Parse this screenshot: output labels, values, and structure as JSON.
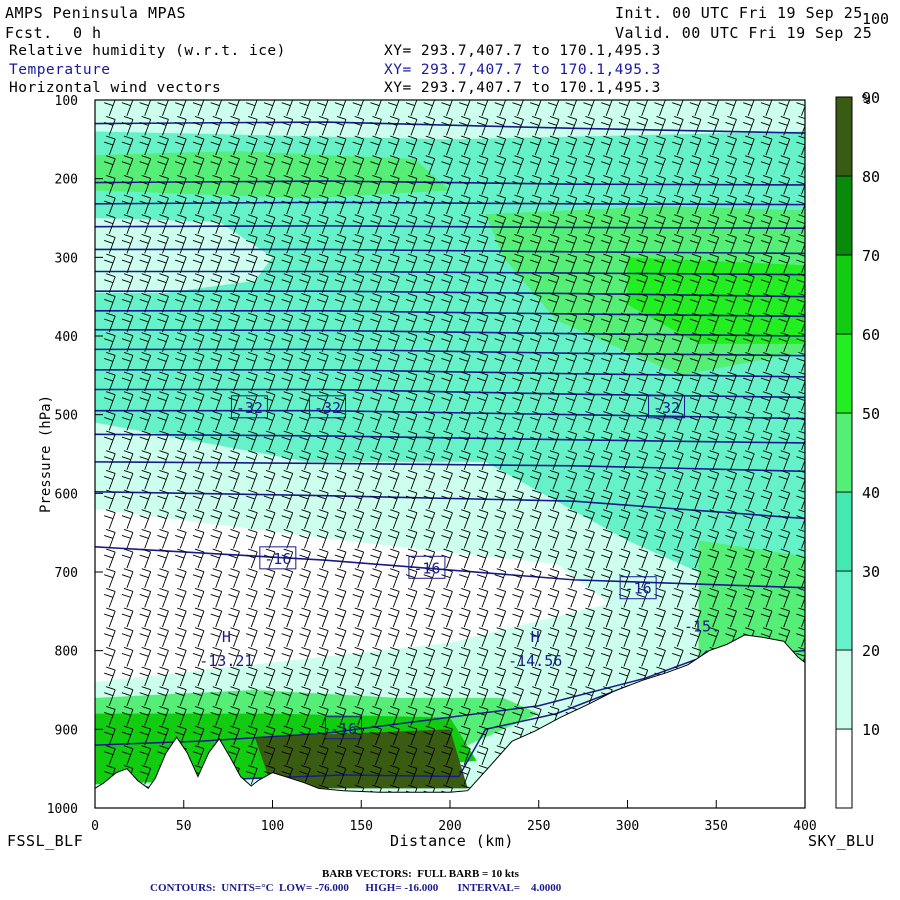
{
  "header": {
    "model": "AMPS Peninsula MPAS",
    "fcst_label": "Fcst.",
    "fcst_value": "0 h",
    "init": "Init. 00 UTC Fri 19 Sep 25",
    "valid": "Valid. 00 UTC Fri 19 Sep 25",
    "fields": [
      {
        "name": "Relative humidity (w.r.t. ice)",
        "xy": "XY= 293.7,407.7 to 170.1,495.3"
      },
      {
        "name": "Temperature",
        "xy": "XY= 293.7,407.7 to 170.1,495.3"
      },
      {
        "name": "Horizontal wind vectors",
        "xy": "XY= 293.7,407.7 to 170.1,495.3"
      }
    ]
  },
  "footer": {
    "left_station": "FSSL_BLF",
    "right_station": "SKY_BLU",
    "barb_note": "BARB VECTORS:  FULL BARB = 10 kts",
    "contours": "CONTOURS:  UNITS=°C  LOW= -76.000      HIGH= -16.000       INTERVAL=    4.0000"
  },
  "colors": {
    "contour": "#1a1a8c",
    "terrain": "#ffffff",
    "rh_bands": [
      "#ffffff",
      "#ccffee",
      "#66f2c8",
      "#44e8b0",
      "#55ee77",
      "#22ee22",
      "#11cc11",
      "#0a8a0a",
      "#3a5c12"
    ]
  },
  "chart_data": {
    "type": "heatmap",
    "xlabel": "Distance (km)",
    "ylabel": "Pressure (hPa)",
    "xlim": [
      0,
      400
    ],
    "ylim": [
      1000,
      100
    ],
    "x_ticks": [
      0,
      50,
      100,
      150,
      200,
      250,
      300,
      350,
      400
    ],
    "y_ticks": [
      100,
      200,
      300,
      400,
      500,
      600,
      700,
      800,
      900,
      1000
    ],
    "colorbar": {
      "unit": "%",
      "levels": [
        0,
        10,
        20,
        30,
        40,
        50,
        60,
        70,
        80,
        90,
        100,
        110
      ],
      "tick_labels": [
        10,
        20,
        30,
        40,
        50,
        60,
        70,
        80,
        90,
        100
      ]
    },
    "contour_labels": [
      {
        "text": "-32",
        "x": 87,
        "p": 490
      },
      {
        "text": "-32",
        "x": 131,
        "p": 490
      },
      {
        "text": "-32",
        "x": 322,
        "p": 490
      },
      {
        "text": "-16",
        "x": 103,
        "p": 682
      },
      {
        "text": "-16",
        "x": 187,
        "p": 694
      },
      {
        "text": "-16",
        "x": 306,
        "p": 720
      },
      {
        "text": "-16",
        "x": 140,
        "p": 898
      }
    ],
    "extrema": [
      {
        "symbol": "H",
        "value": "-13.21",
        "x": 74,
        "p": 812
      },
      {
        "symbol": "H",
        "value": "-14.56",
        "x": 248,
        "p": 812
      },
      {
        "value": "-15.",
        "x": 342,
        "p": 768
      }
    ],
    "terrain_profile": [
      [
        0,
        975
      ],
      [
        5,
        968
      ],
      [
        12,
        955
      ],
      [
        18,
        950
      ],
      [
        24,
        965
      ],
      [
        30,
        975
      ],
      [
        34,
        962
      ],
      [
        40,
        930
      ],
      [
        46,
        910
      ],
      [
        52,
        930
      ],
      [
        58,
        960
      ],
      [
        64,
        930
      ],
      [
        70,
        912
      ],
      [
        76,
        935
      ],
      [
        82,
        960
      ],
      [
        88,
        972
      ],
      [
        92,
        965
      ],
      [
        100,
        955
      ],
      [
        110,
        962
      ],
      [
        118,
        968
      ],
      [
        126,
        975
      ],
      [
        140,
        978
      ],
      [
        160,
        980
      ],
      [
        180,
        980
      ],
      [
        200,
        980
      ],
      [
        210,
        978
      ],
      [
        222,
        948
      ],
      [
        235,
        915
      ],
      [
        248,
        902
      ],
      [
        262,
        885
      ],
      [
        278,
        868
      ],
      [
        292,
        852
      ],
      [
        308,
        838
      ],
      [
        322,
        828
      ],
      [
        334,
        818
      ],
      [
        346,
        800
      ],
      [
        356,
        792
      ],
      [
        366,
        780
      ],
      [
        376,
        783
      ],
      [
        388,
        788
      ],
      [
        396,
        808
      ],
      [
        400,
        815
      ]
    ]
  }
}
